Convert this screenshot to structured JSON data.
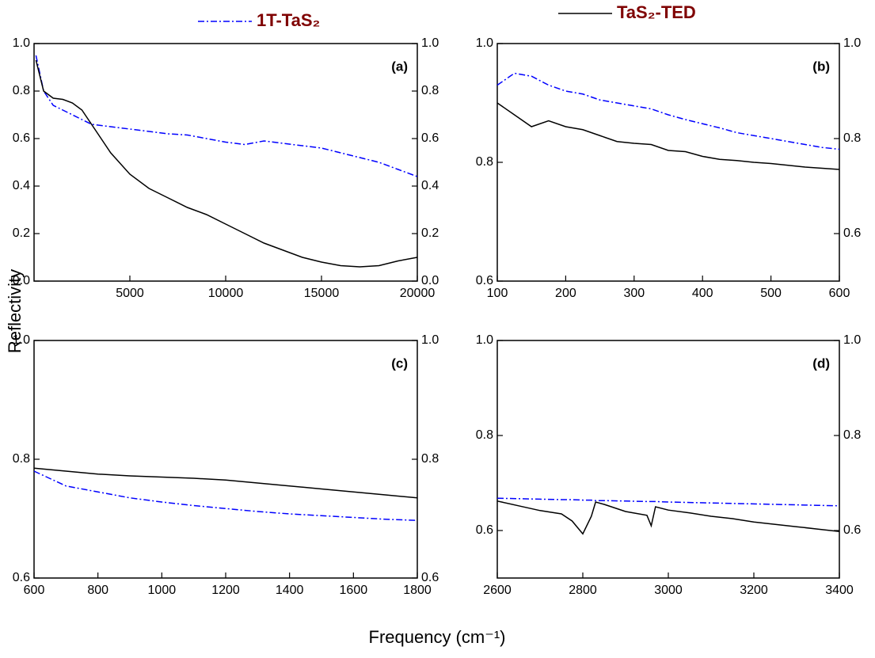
{
  "legend_title_note": null,
  "y_label": "Reflectivity",
  "x_label": "Frequency (cm⁻¹)",
  "chart_data": [
    {
      "type": "line",
      "panel_label": "(a)",
      "x": [
        100,
        500,
        1000,
        1500,
        2000,
        2500,
        3000,
        3500,
        4000,
        5000,
        6000,
        7000,
        8000,
        9000,
        10000,
        11000,
        12000,
        13000,
        14000,
        15000,
        16000,
        17000,
        18000,
        19000,
        20000
      ],
      "series": [
        {
          "name": "1T-TaS₂",
          "color": "#0000ff",
          "style": "dashdot",
          "values": [
            0.95,
            0.8,
            0.74,
            0.72,
            0.7,
            0.68,
            0.66,
            0.655,
            0.65,
            0.64,
            0.63,
            0.62,
            0.615,
            0.6,
            0.585,
            0.575,
            0.59,
            0.58,
            0.57,
            0.56,
            0.54,
            0.52,
            0.5,
            0.47,
            0.44
          ]
        },
        {
          "name": "TaS₂-TED",
          "color": "#000000",
          "style": "solid",
          "values": [
            0.93,
            0.8,
            0.77,
            0.765,
            0.75,
            0.72,
            0.66,
            0.6,
            0.54,
            0.45,
            0.39,
            0.35,
            0.31,
            0.28,
            0.24,
            0.2,
            0.16,
            0.13,
            0.1,
            0.08,
            0.065,
            0.06,
            0.065,
            0.085,
            0.1
          ]
        }
      ],
      "xlim": [
        0,
        20000
      ],
      "xticks": [
        5000,
        10000,
        15000,
        20000
      ],
      "ylim": [
        0,
        1
      ],
      "yticks": [
        {
          "value": 0,
          "label": "0.0"
        },
        0.2,
        0.4,
        0.6,
        0.8,
        {
          "value": 1,
          "label": "1.0"
        }
      ],
      "y2lim": [
        0,
        1
      ],
      "y2ticks": [
        {
          "value": 0,
          "label": "0.0"
        },
        0.2,
        0.4,
        0.6,
        0.8,
        {
          "value": 1,
          "label": "1.0"
        }
      ]
    },
    {
      "type": "line",
      "panel_label": "(b)",
      "x": [
        100,
        125,
        150,
        175,
        200,
        225,
        250,
        275,
        300,
        325,
        350,
        375,
        400,
        425,
        450,
        475,
        500,
        525,
        550,
        575,
        600
      ],
      "series": [
        {
          "name": "1T-TaS₂",
          "color": "#0000ff",
          "style": "dashdot",
          "values": [
            0.93,
            0.95,
            0.945,
            0.93,
            0.92,
            0.915,
            0.905,
            0.9,
            0.895,
            0.89,
            0.88,
            0.872,
            0.865,
            0.858,
            0.85,
            0.845,
            0.84,
            0.835,
            0.83,
            0.825,
            0.822
          ]
        },
        {
          "name": "TaS₂-TED",
          "color": "#000000",
          "style": "solid",
          "values": [
            0.9,
            0.88,
            0.86,
            0.87,
            0.86,
            0.855,
            0.845,
            0.835,
            0.832,
            0.83,
            0.82,
            0.818,
            0.81,
            0.805,
            0.803,
            0.8,
            0.798,
            0.795,
            0.792,
            0.79,
            0.788
          ]
        }
      ],
      "xlim": [
        100,
        600
      ],
      "xticks": [
        100,
        200,
        300,
        400,
        500,
        600
      ],
      "ylim": [
        0.6,
        1
      ],
      "yticks": [
        0.6,
        0.8,
        {
          "value": 1,
          "label": "1.0"
        }
      ],
      "y2lim": [
        0.5,
        1
      ],
      "y2ticks": [
        0.6,
        0.8,
        {
          "value": 1,
          "label": "1.0"
        }
      ]
    },
    {
      "type": "line",
      "panel_label": "(c)",
      "x": [
        600,
        700,
        800,
        900,
        1000,
        1100,
        1200,
        1300,
        1400,
        1500,
        1600,
        1700,
        1800
      ],
      "series": [
        {
          "name": "1T-TaS₂",
          "color": "#0000ff",
          "style": "dashdot",
          "values": [
            0.78,
            0.755,
            0.745,
            0.735,
            0.728,
            0.722,
            0.717,
            0.712,
            0.708,
            0.705,
            0.702,
            0.699,
            0.697
          ]
        },
        {
          "name": "TaS₂-TED",
          "color": "#000000",
          "style": "solid",
          "values": [
            0.785,
            0.78,
            0.775,
            0.772,
            0.77,
            0.768,
            0.765,
            0.76,
            0.755,
            0.75,
            0.745,
            0.74,
            0.735
          ]
        }
      ],
      "xlim": [
        600,
        1800
      ],
      "xticks": [
        600,
        800,
        1000,
        1200,
        1400,
        1600,
        1800
      ],
      "ylim": [
        0.6,
        1
      ],
      "yticks": [
        0.6,
        0.8,
        {
          "value": 1,
          "label": "1.0"
        }
      ],
      "y2lim": [
        0.6,
        1
      ],
      "y2ticks": [
        0.6,
        0.8,
        {
          "value": 1,
          "label": "1.0"
        }
      ]
    },
    {
      "type": "line",
      "panel_label": "(d)",
      "x": [
        2600,
        2650,
        2700,
        2750,
        2775,
        2800,
        2820,
        2830,
        2850,
        2900,
        2950,
        2960,
        2970,
        3000,
        3050,
        3100,
        3150,
        3200,
        3250,
        3300,
        3350,
        3400
      ],
      "series": [
        {
          "name": "1T-TaS₂",
          "color": "#0000ff",
          "style": "dashdot",
          "values": [
            0.668,
            0.667,
            0.666,
            0.665,
            0.665,
            0.664,
            0.664,
            0.663,
            0.663,
            0.662,
            0.661,
            0.661,
            0.661,
            0.66,
            0.659,
            0.658,
            0.657,
            0.656,
            0.655,
            0.654,
            0.653,
            0.652
          ]
        },
        {
          "name": "TaS₂-TED",
          "color": "#000000",
          "style": "solid",
          "values": [
            0.662,
            0.652,
            0.642,
            0.635,
            0.62,
            0.593,
            0.63,
            0.66,
            0.655,
            0.64,
            0.632,
            0.61,
            0.65,
            0.643,
            0.637,
            0.63,
            0.625,
            0.618,
            0.613,
            0.608,
            0.603,
            0.598
          ]
        }
      ],
      "xlim": [
        2600,
        3400
      ],
      "xticks": [
        2600,
        2800,
        3000,
        3200,
        3400
      ],
      "ylim": [
        0.5,
        1
      ],
      "yticks": [
        0.6,
        0.8,
        {
          "value": 1,
          "label": "1.0"
        }
      ],
      "y2lim": [
        0.5,
        1
      ],
      "y2ticks": [
        0.6,
        0.8,
        {
          "value": 1,
          "label": "1.0"
        }
      ]
    }
  ]
}
